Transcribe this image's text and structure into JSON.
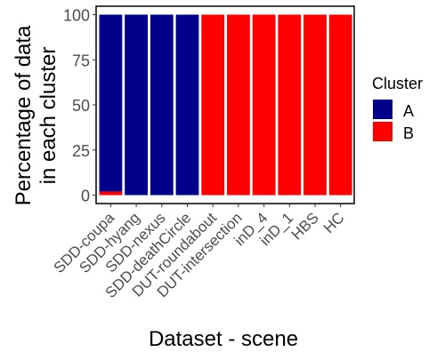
{
  "chart_data": {
    "type": "bar",
    "stacked": true,
    "title": "",
    "xlabel": "Dataset - scene",
    "ylabel_lines": [
      "Percentage of data",
      "in each cluster"
    ],
    "categories": [
      "SDD-coupa",
      "SDD-hyang",
      "SDD-nexus",
      "SDD-deathCircle",
      "DUT-roundabout",
      "DUT-intersection",
      "inD_4",
      "inD_1",
      "HBS",
      "HC"
    ],
    "series": [
      {
        "name": "A",
        "color": "#00008B",
        "values": [
          98,
          100,
          100,
          100,
          0,
          0,
          0,
          0,
          0,
          0
        ]
      },
      {
        "name": "B",
        "color": "#FF0000",
        "values": [
          2,
          0,
          0,
          0,
          100,
          100,
          100,
          100,
          100,
          100
        ]
      }
    ],
    "ylim": [
      0,
      100
    ],
    "yticks": [
      0,
      25,
      50,
      75,
      100
    ],
    "grid": false,
    "legend": {
      "title": "Cluster",
      "position": "right"
    }
  }
}
